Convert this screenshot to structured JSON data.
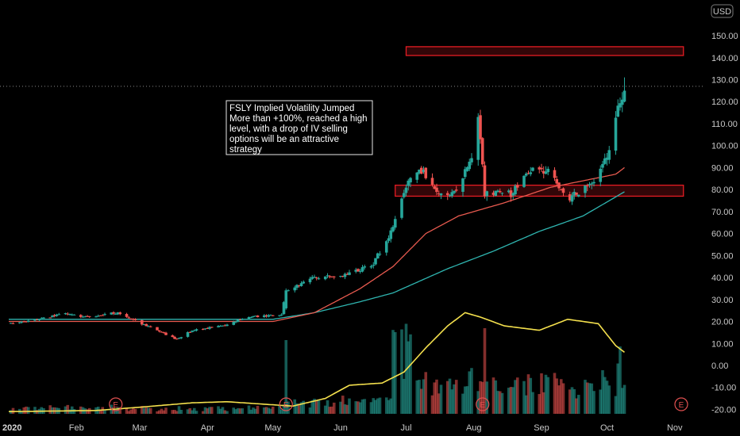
{
  "currency": "USD",
  "annotation": {
    "lines": [
      "FSLY Implied Volatility Jumped",
      "More than +100%, reached a high",
      "level, with a drop of IV selling",
      "options will be an attractive",
      "strategy"
    ]
  },
  "colors": {
    "up": "#26a69a",
    "down": "#ef5350",
    "ma_fast": "#e85a4f",
    "ma_slow": "#2fb5b0",
    "iv": "#f4e04d",
    "zone": "#e51c23",
    "background": "#000000"
  },
  "earnings_marker": "E",
  "chart_data": {
    "type": "candlestick",
    "ticker": "FSLY",
    "x_ticks": [
      "2020",
      "Feb",
      "Mar",
      "Apr",
      "May",
      "Jun",
      "Jul",
      "Aug",
      "Sep",
      "Oct",
      "Nov"
    ],
    "y_ticks": [
      "150.00",
      "140.00",
      "130.00",
      "120.00",
      "110.00",
      "100.00",
      "90.00",
      "80.00",
      "70.00",
      "60.00",
      "50.00",
      "40.00",
      "30.00",
      "20.00",
      "10.00",
      "0.00",
      "-10.00",
      "-20.00"
    ],
    "ylim": [
      -21,
      157
    ],
    "price_path": [
      [
        "2020-01-02",
        19
      ],
      [
        "2020-01-15",
        21
      ],
      [
        "2020-01-27",
        24
      ],
      [
        "2020-02-05",
        22
      ],
      [
        "2020-02-20",
        24
      ],
      [
        "2020-03-02",
        19
      ],
      [
        "2020-03-18",
        12
      ],
      [
        "2020-03-25",
        16
      ],
      [
        "2020-04-08",
        18
      ],
      [
        "2020-04-20",
        22
      ],
      [
        "2020-05-05",
        23
      ],
      [
        "2020-05-07",
        34
      ],
      [
        "2020-05-20",
        40
      ],
      [
        "2020-06-01",
        41
      ],
      [
        "2020-06-15",
        45
      ],
      [
        "2020-06-25",
        62
      ],
      [
        "2020-07-02",
        85
      ],
      [
        "2020-07-08",
        89
      ],
      [
        "2020-07-14",
        80
      ],
      [
        "2020-07-23",
        78
      ],
      [
        "2020-07-31",
        95
      ],
      [
        "2020-08-03",
        114
      ],
      [
        "2020-08-06",
        78
      ],
      [
        "2020-08-18",
        78
      ],
      [
        "2020-08-28",
        90
      ],
      [
        "2020-09-04",
        88
      ],
      [
        "2020-09-14",
        76
      ],
      [
        "2020-09-25",
        85
      ],
      [
        "2020-10-02",
        96
      ],
      [
        "2020-10-06",
        118
      ],
      [
        "2020-10-09",
        125
      ]
    ],
    "ma_fast": [
      [
        "2020-01-01",
        20
      ],
      [
        "2020-05-01",
        20
      ],
      [
        "2020-05-20",
        24
      ],
      [
        "2020-06-10",
        35
      ],
      [
        "2020-06-25",
        45
      ],
      [
        "2020-07-10",
        60
      ],
      [
        "2020-07-25",
        68
      ],
      [
        "2020-08-15",
        74
      ],
      [
        "2020-09-05",
        81
      ],
      [
        "2020-09-20",
        84
      ],
      [
        "2020-10-05",
        87
      ],
      [
        "2020-10-09",
        90
      ]
    ],
    "ma_slow": [
      [
        "2020-01-01",
        21
      ],
      [
        "2020-05-01",
        21
      ],
      [
        "2020-05-20",
        24
      ],
      [
        "2020-06-10",
        29
      ],
      [
        "2020-06-25",
        33
      ],
      [
        "2020-07-20",
        44
      ],
      [
        "2020-08-10",
        52
      ],
      [
        "2020-08-31",
        61
      ],
      [
        "2020-09-20",
        68
      ],
      [
        "2020-10-09",
        79
      ]
    ],
    "iv_line": [
      [
        "2020-01-01",
        -21
      ],
      [
        "2020-02-10",
        -20.5
      ],
      [
        "2020-03-01",
        -19
      ],
      [
        "2020-03-25",
        -17
      ],
      [
        "2020-04-10",
        -16.5
      ],
      [
        "2020-04-25",
        -17.5
      ],
      [
        "2020-05-10",
        -18.5
      ],
      [
        "2020-05-25",
        -15
      ],
      [
        "2020-06-05",
        -9
      ],
      [
        "2020-06-20",
        -8
      ],
      [
        "2020-06-30",
        -3
      ],
      [
        "2020-07-10",
        8
      ],
      [
        "2020-07-20",
        18
      ],
      [
        "2020-07-28",
        24
      ],
      [
        "2020-08-04",
        22
      ],
      [
        "2020-08-15",
        18
      ],
      [
        "2020-08-31",
        16
      ],
      [
        "2020-09-13",
        21
      ],
      [
        "2020-09-27",
        19
      ],
      [
        "2020-10-05",
        9
      ],
      [
        "2020-10-09",
        6
      ]
    ],
    "resistance_zone": [
      141,
      145,
      "2020-07-01",
      "2020-11-05"
    ],
    "support_zone": [
      77,
      82,
      "2020-06-26",
      "2020-11-05"
    ],
    "current_price_level": 127,
    "earnings_dates": [
      "2020-02-19",
      "2020-05-07",
      "2020-08-05",
      "2020-11-04"
    ]
  }
}
